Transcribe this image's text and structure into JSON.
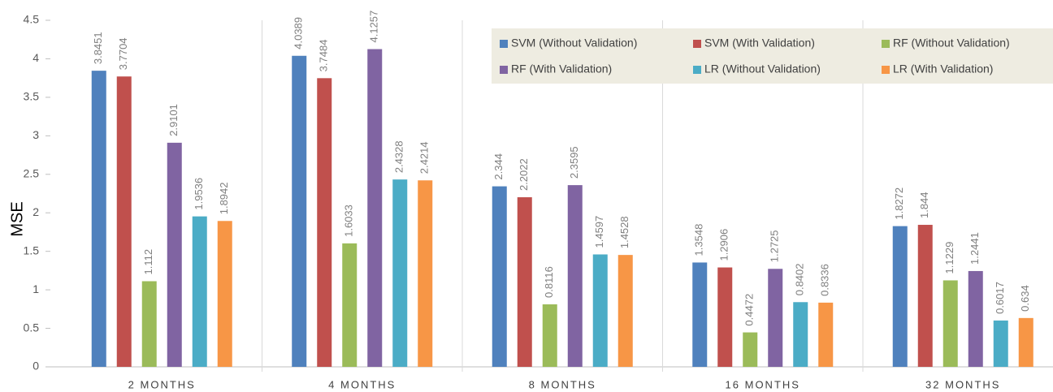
{
  "chart_data": {
    "type": "bar",
    "ylabel": "MSE",
    "categories": [
      "2 MONTHS",
      "4 MONTHS",
      "8 MONTHS",
      "16 MONTHS",
      "32 MONTHS"
    ],
    "series": [
      {
        "name": "SVM (Without Validation)",
        "color": "#4f81bd",
        "values": [
          3.8451,
          4.0389,
          2.344,
          1.3548,
          1.8272
        ]
      },
      {
        "name": "SVM (With Validation)",
        "color": "#c0504d",
        "values": [
          3.7704,
          3.7484,
          2.2022,
          1.2906,
          1.844
        ]
      },
      {
        "name": "RF (Without Validation)",
        "color": "#9bbb59",
        "values": [
          1.112,
          1.6033,
          0.8116,
          0.4472,
          1.1229
        ]
      },
      {
        "name": "RF (With Validation)",
        "color": "#8064a2",
        "values": [
          2.9101,
          4.1257,
          2.3595,
          1.2725,
          1.2441
        ]
      },
      {
        "name": "LR (Without Validation)",
        "color": "#4bacc6",
        "values": [
          1.9536,
          2.4328,
          1.4597,
          0.8402,
          0.6017
        ]
      },
      {
        "name": "LR (With Validation)",
        "color": "#f79646",
        "values": [
          1.8942,
          2.4214,
          1.4528,
          0.8336,
          0.634
        ]
      }
    ],
    "ylim": [
      0,
      4.5
    ],
    "yticks": [
      0,
      0.5,
      1,
      1.5,
      2,
      2.5,
      3,
      3.5,
      4,
      4.5
    ],
    "grid": false,
    "legend": "top-right"
  }
}
